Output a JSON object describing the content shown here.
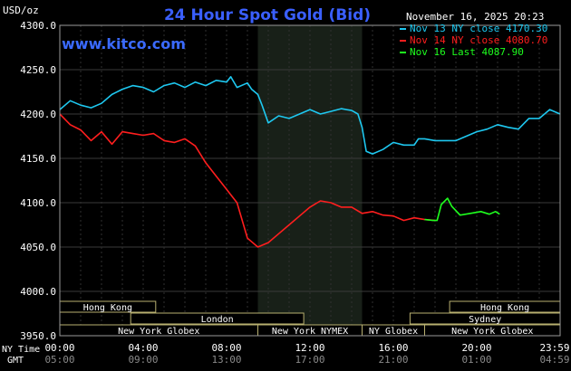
{
  "chart_data": {
    "type": "line",
    "title": "24 Hour Spot Gold (Bid)",
    "subtitle": "www.kitco.com",
    "unit_label": "USD/oz",
    "timestamp": "November 16, 2025 20:23",
    "ylim": [
      3950,
      4300
    ],
    "y_ticks": [
      "4300.0",
      "4250.0",
      "4200.0",
      "4150.0",
      "4100.0",
      "4050.0",
      "4000.0",
      "3950.0"
    ],
    "x_row_label": "NY Time",
    "x_ticks": [
      "00:00",
      "04:00",
      "08:00",
      "12:00",
      "16:00",
      "20:00",
      "23:59"
    ],
    "x2_row_label": "GMT",
    "x2_ticks": [
      "05:00",
      "09:00",
      "13:00",
      "17:00",
      "21:00",
      "01:00",
      "04:59"
    ],
    "highlight_band_hours": [
      9.5,
      14.5
    ],
    "legend_position": "top-right",
    "legend": [
      {
        "label": "Nov 13 NY close 4170.30",
        "color": "#1ec8f0"
      },
      {
        "label": "Nov 14 NY close 4080.70",
        "color": "#ff1e1e"
      },
      {
        "label": "Nov 16 Last 4087.90",
        "color": "#1eff1e"
      }
    ],
    "sessions": [
      {
        "label": "Hong Kong",
        "start": 0,
        "end": 4.6,
        "row": 0
      },
      {
        "label": "Hong Kong",
        "start": 18.7,
        "end": 24,
        "row": 0
      },
      {
        "label": "London",
        "start": 3.4,
        "end": 11.7,
        "row": 1
      },
      {
        "label": "Sydney",
        "start": 16.8,
        "end": 24,
        "row": 1
      },
      {
        "label": "New York Globex",
        "start": 0,
        "end": 9.5,
        "row": 2
      },
      {
        "label": "New York NYMEX",
        "start": 9.5,
        "end": 14.5,
        "row": 2
      },
      {
        "label": "NY Globex",
        "start": 14.5,
        "end": 17.5,
        "row": 2
      },
      {
        "label": "New York Globex",
        "start": 17.5,
        "end": 24,
        "row": 2
      }
    ],
    "series": [
      {
        "name": "Nov 13",
        "color": "#1ec8f0",
        "x": [
          0,
          0.5,
          1.0,
          1.5,
          2.0,
          2.5,
          3.0,
          3.5,
          4.0,
          4.5,
          5.0,
          5.5,
          6.0,
          6.5,
          7.0,
          7.5,
          8.0,
          8.2,
          8.5,
          9.0,
          9.2,
          9.5,
          9.7,
          10.0,
          10.5,
          11.0,
          11.5,
          12.0,
          12.5,
          13.0,
          13.5,
          14.0,
          14.3,
          14.5,
          14.7,
          15.0,
          15.5,
          16.0,
          16.5,
          17.0,
          17.2,
          17.5,
          18.0,
          18.5,
          19.0,
          19.5,
          20.0,
          20.5,
          21.0,
          21.5,
          22.0,
          22.5,
          23.0,
          23.5,
          24.0
        ],
        "y": [
          4205,
          4215,
          4210,
          4207,
          4212,
          4222,
          4228,
          4232,
          4230,
          4225,
          4232,
          4235,
          4230,
          4236,
          4232,
          4238,
          4236,
          4242,
          4230,
          4235,
          4228,
          4222,
          4210,
          4190,
          4198,
          4195,
          4200,
          4205,
          4200,
          4203,
          4206,
          4204,
          4200,
          4185,
          4158,
          4155,
          4160,
          4168,
          4165,
          4165,
          4172,
          4172,
          4170,
          4170,
          4170,
          4175,
          4180,
          4183,
          4188,
          4185,
          4183,
          4195,
          4195,
          4205,
          4200
        ]
      },
      {
        "name": "Nov 14",
        "color": "#ff1e1e",
        "x": [
          0,
          0.5,
          1.0,
          1.5,
          2.0,
          2.5,
          3.0,
          3.5,
          4.0,
          4.5,
          5.0,
          5.5,
          6.0,
          6.5,
          7.0,
          7.5,
          8.0,
          8.5,
          9.0,
          9.5,
          10.0,
          10.5,
          11.0,
          11.5,
          12.0,
          12.5,
          13.0,
          13.5,
          14.0,
          14.5,
          15.0,
          15.5,
          16.0,
          16.5,
          17.0,
          17.5,
          18.0
        ],
        "y": [
          4200,
          4188,
          4182,
          4170,
          4180,
          4166,
          4180,
          4178,
          4176,
          4178,
          4170,
          4168,
          4172,
          4164,
          4145,
          4130,
          4115,
          4100,
          4060,
          4050,
          4055,
          4065,
          4075,
          4085,
          4095,
          4102,
          4100,
          4095,
          4095,
          4088,
          4090,
          4086,
          4085,
          4080,
          4083,
          4081,
          4080
        ]
      },
      {
        "name": "Nov 16",
        "color": "#1eff1e",
        "x": [
          17.5,
          17.9,
          18.1,
          18.3,
          18.6,
          18.8,
          19.2,
          19.7,
          20.2,
          20.6,
          20.9,
          21.1
        ],
        "y": [
          4081,
          4080,
          4080,
          4098,
          4105,
          4096,
          4086,
          4088,
          4090,
          4087,
          4090,
          4087
        ]
      }
    ]
  }
}
